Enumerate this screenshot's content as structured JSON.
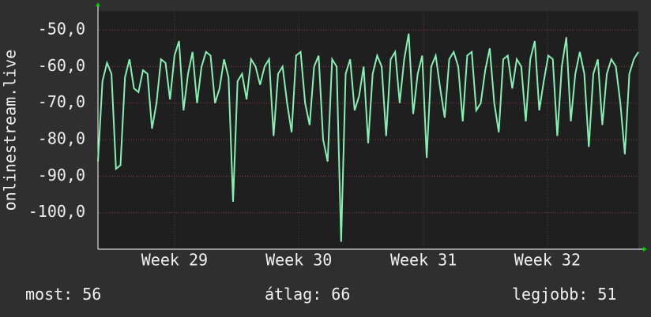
{
  "chart_data": {
    "type": "line",
    "y_label": "onlinestream.live",
    "xlim": [
      0,
      120
    ],
    "xticks": [
      {
        "value": 17,
        "label": "Week 29"
      },
      {
        "value": 44.6,
        "label": "Week 30"
      },
      {
        "value": 72.3,
        "label": "Week 31"
      },
      {
        "value": 99.8,
        "label": "Week 32"
      }
    ],
    "ylim": [
      -110,
      -44.8
    ],
    "yticks": [
      {
        "value": -100,
        "label": "-100,0"
      },
      {
        "value": -90,
        "label": "-90,0"
      },
      {
        "value": -80,
        "label": "-80,0"
      },
      {
        "value": -70,
        "label": "-70,0"
      },
      {
        "value": -60,
        "label": "-60,0"
      },
      {
        "value": -50,
        "label": "-50,0"
      }
    ],
    "grid": true,
    "series": [
      {
        "color": "#86f0b4",
        "values": [
          -86,
          -64,
          -59,
          -62,
          -88,
          -87,
          -63,
          -58,
          -66,
          -67,
          -61,
          -62,
          -77,
          -70,
          -58,
          -59,
          -69,
          -57,
          -53,
          -72,
          -62,
          -56,
          -70,
          -60,
          -56,
          -57,
          -70,
          -66,
          -58,
          -63,
          -97,
          -64,
          -62,
          -69,
          -58,
          -60,
          -65,
          -60,
          -58,
          -79,
          -62,
          -60,
          -70,
          -78,
          -57,
          -56,
          -70,
          -76,
          -60,
          -57,
          -80,
          -86,
          -58,
          -60,
          -108,
          -62,
          -58,
          -72,
          -68,
          -60,
          -81,
          -62,
          -57,
          -60,
          -79,
          -58,
          -56,
          -70,
          -58,
          -51,
          -73,
          -62,
          -57,
          -85,
          -60,
          -57,
          -66,
          -74,
          -58,
          -56,
          -60,
          -75,
          -57,
          -56,
          -72,
          -70,
          -61,
          -55,
          -70,
          -78,
          -58,
          -57,
          -66,
          -58,
          -60,
          -75,
          -58,
          -53,
          -72,
          -64,
          -57,
          -58,
          -79,
          -60,
          -52,
          -75,
          -62,
          -56,
          -62,
          -82,
          -62,
          -58,
          -76,
          -62,
          -58,
          -60,
          -70,
          -84,
          -62,
          -58,
          -56
        ]
      }
    ],
    "summary": [
      {
        "label": "most:",
        "value": 56
      },
      {
        "label": "átlag:",
        "value": 66
      },
      {
        "label": "legjobb:",
        "value": 51
      }
    ]
  }
}
